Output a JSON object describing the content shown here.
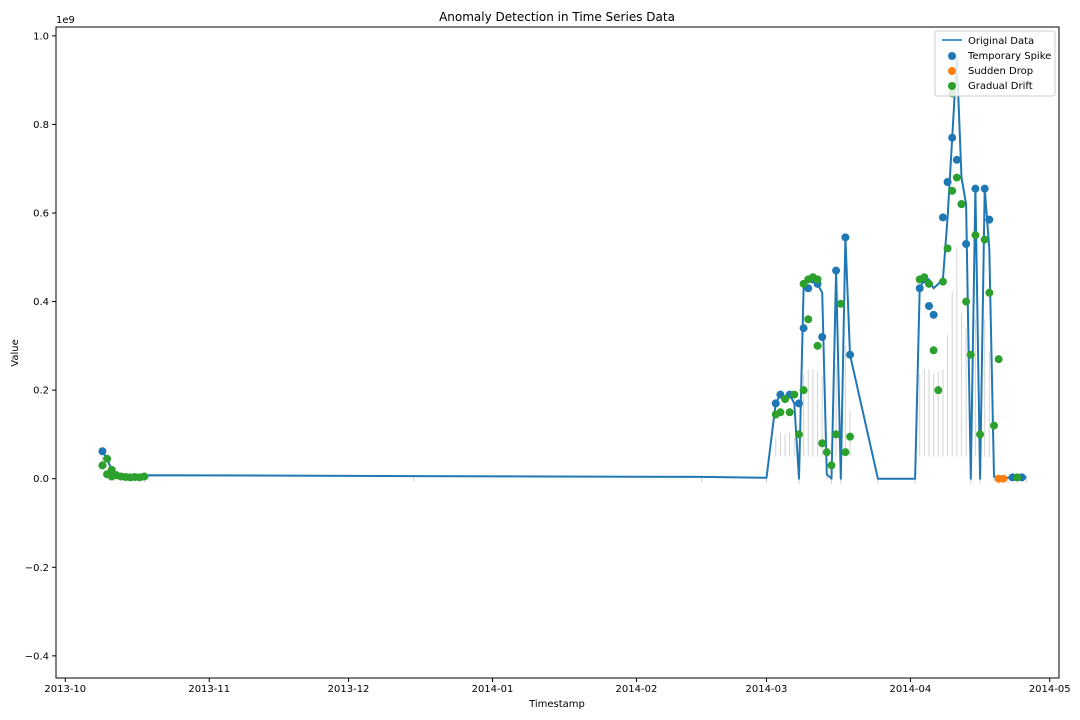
{
  "chart_data": {
    "type": "line",
    "title": "Anomaly Detection in Time Series Data",
    "xlabel": "Timestamp",
    "ylabel": "Value",
    "y_offset_label": "1e9",
    "xlim": [
      "2013-09-29",
      "2014-05-03"
    ],
    "ylim": [
      -0.45,
      1.02
    ],
    "y_scale": 1000000000,
    "x_ticks": [
      "2013-10",
      "2013-11",
      "2013-12",
      "2014-01",
      "2014-02",
      "2014-03",
      "2014-04",
      "2014-05"
    ],
    "y_ticks": [
      -0.4,
      -0.2,
      0.0,
      0.2,
      0.4,
      0.6,
      0.8,
      1.0
    ],
    "y_tick_labels": [
      "−0.4",
      "−0.2",
      "0.0",
      "0.2",
      "0.4",
      "0.6",
      "0.8",
      "1.0"
    ],
    "grid": false,
    "legend_position": "top-right",
    "band_color": "#d3d3d3",
    "series": [
      {
        "name": "Original Data",
        "kind": "line",
        "color": "#1f77b4",
        "x": [
          "2013-10-09",
          "2013-10-10",
          "2013-10-11",
          "2013-10-12",
          "2013-10-14",
          "2013-10-16",
          "2013-10-18",
          "2013-10-19",
          "2013-12-15",
          "2014-02-15",
          "2014-03-01",
          "2014-03-03",
          "2014-03-04",
          "2014-03-05",
          "2014-03-06",
          "2014-03-07",
          "2014-03-08",
          "2014-03-09",
          "2014-03-10",
          "2014-03-11",
          "2014-03-12",
          "2014-03-13",
          "2014-03-14",
          "2014-03-15",
          "2014-03-16",
          "2014-03-17",
          "2014-03-18",
          "2014-03-19",
          "2014-03-25",
          "2014-04-02",
          "2014-04-03",
          "2014-04-04",
          "2014-04-05",
          "2014-04-06",
          "2014-04-07",
          "2014-04-08",
          "2014-04-09",
          "2014-04-10",
          "2014-04-11",
          "2014-04-12",
          "2014-04-13",
          "2014-04-14",
          "2014-04-15",
          "2014-04-16",
          "2014-04-17",
          "2014-04-18",
          "2014-04-19",
          "2014-04-20",
          "2014-04-22",
          "2014-04-24",
          "2014-04-26"
        ],
        "y": [
          0.062,
          0.045,
          0.02,
          0.008,
          0.006,
          0.005,
          0.004,
          0.008,
          0.006,
          0.004,
          0.002,
          0.17,
          0.19,
          0.18,
          0.19,
          0.17,
          0.0,
          0.43,
          0.45,
          0.45,
          0.44,
          0.42,
          0.01,
          0.0,
          0.47,
          0.0,
          0.545,
          0.28,
          0.0,
          0.0,
          0.43,
          0.45,
          0.45,
          0.43,
          0.44,
          0.45,
          0.59,
          0.77,
          0.95,
          0.68,
          0.62,
          0.0,
          0.655,
          0.0,
          0.655,
          0.52,
          0.005,
          0.0,
          0.002,
          0.003,
          0.003
        ]
      },
      {
        "name": "Temporary Spike",
        "kind": "scatter",
        "color": "#1f77b4",
        "x": [
          "2013-10-09",
          "2014-03-03",
          "2014-03-04",
          "2014-03-06",
          "2014-03-08",
          "2014-03-09",
          "2014-03-10",
          "2014-03-11",
          "2014-03-12",
          "2014-03-13",
          "2014-03-16",
          "2014-03-18",
          "2014-03-19",
          "2014-04-03",
          "2014-04-04",
          "2014-04-05",
          "2014-04-06",
          "2014-04-08",
          "2014-04-09",
          "2014-04-10",
          "2014-04-11",
          "2014-04-12",
          "2014-04-13",
          "2014-04-15",
          "2014-04-17",
          "2014-04-18",
          "2014-04-23",
          "2014-04-25"
        ],
        "y": [
          0.062,
          0.17,
          0.19,
          0.19,
          0.17,
          0.34,
          0.43,
          0.45,
          0.44,
          0.32,
          0.47,
          0.545,
          0.28,
          0.43,
          0.45,
          0.39,
          0.37,
          0.59,
          0.67,
          0.77,
          0.72,
          0.62,
          0.53,
          0.655,
          0.655,
          0.585,
          0.003,
          0.003
        ]
      },
      {
        "name": "Sudden Drop",
        "kind": "scatter",
        "color": "#ff7f0e",
        "x": [
          "2014-04-20",
          "2014-04-21"
        ],
        "y": [
          0.0,
          0.0
        ]
      },
      {
        "name": "Gradual Drift",
        "kind": "scatter",
        "color": "#2ca02c",
        "x": [
          "2013-10-09",
          "2013-10-10",
          "2013-10-10",
          "2013-10-11",
          "2013-10-11",
          "2013-10-12",
          "2013-10-13",
          "2013-10-14",
          "2013-10-15",
          "2013-10-16",
          "2013-10-17",
          "2013-10-18",
          "2014-03-03",
          "2014-03-04",
          "2014-03-05",
          "2014-03-06",
          "2014-03-07",
          "2014-03-08",
          "2014-03-09",
          "2014-03-09",
          "2014-03-10",
          "2014-03-10",
          "2014-03-11",
          "2014-03-12",
          "2014-03-12",
          "2014-03-13",
          "2014-03-14",
          "2014-03-15",
          "2014-03-16",
          "2014-03-17",
          "2014-03-18",
          "2014-03-19",
          "2014-04-03",
          "2014-04-04",
          "2014-04-05",
          "2014-04-06",
          "2014-04-07",
          "2014-04-08",
          "2014-04-09",
          "2014-04-10",
          "2014-04-10",
          "2014-04-11",
          "2014-04-12",
          "2014-04-13",
          "2014-04-14",
          "2014-04-15",
          "2014-04-16",
          "2014-04-17",
          "2014-04-18",
          "2014-04-19",
          "2014-04-20",
          "2014-04-24"
        ],
        "y": [
          0.03,
          0.045,
          0.01,
          0.02,
          0.005,
          0.008,
          0.005,
          0.004,
          0.003,
          0.004,
          0.003,
          0.005,
          0.145,
          0.15,
          0.18,
          0.15,
          0.19,
          0.1,
          0.44,
          0.2,
          0.45,
          0.36,
          0.455,
          0.45,
          0.3,
          0.08,
          0.06,
          0.03,
          0.1,
          0.395,
          0.06,
          0.095,
          0.45,
          0.455,
          0.44,
          0.29,
          0.2,
          0.445,
          0.52,
          0.87,
          0.65,
          0.68,
          0.62,
          0.4,
          0.28,
          0.55,
          0.1,
          0.54,
          0.42,
          0.12,
          0.27,
          0.003
        ]
      }
    ]
  }
}
